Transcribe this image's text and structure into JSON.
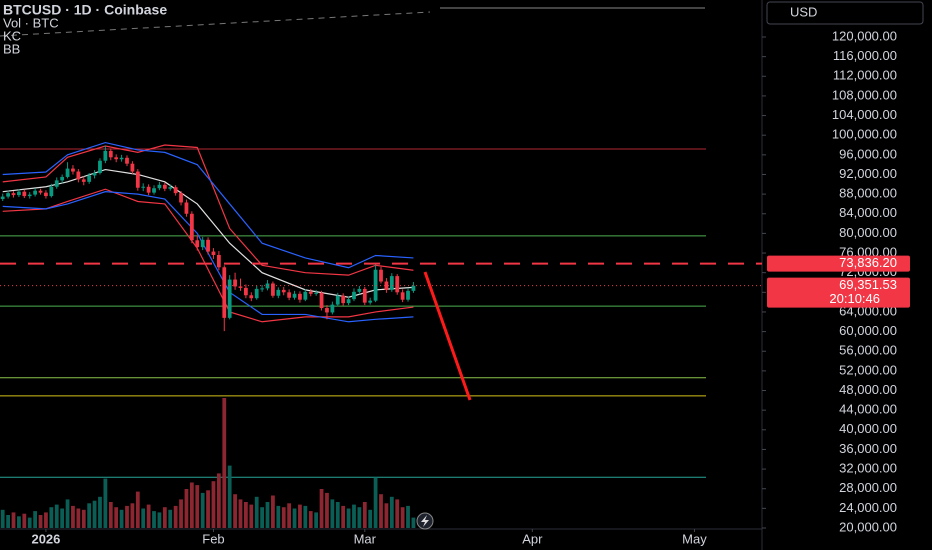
{
  "header": {
    "title": "BTCUSD · 1D · Coinbase",
    "volume": "Vol · BTC",
    "kc": "KC",
    "bb": "BB"
  },
  "currency": "USD",
  "chart_data": {
    "type": "candlestick",
    "xlim": [
      -0.5,
      140.5
    ],
    "ylim": [
      20000,
      120000
    ],
    "xticks": [
      {
        "value": 8,
        "label": "2026"
      },
      {
        "value": 39,
        "label": "Feb"
      },
      {
        "value": 67,
        "label": "Mar"
      },
      {
        "value": 98,
        "label": "Apr"
      },
      {
        "value": 128,
        "label": "May"
      }
    ],
    "yticks": [
      {
        "value": 120000,
        "label": "120,000.00"
      },
      {
        "value": 116000,
        "label": "116,000.00"
      },
      {
        "value": 112000,
        "label": "112,000.00"
      },
      {
        "value": 108000,
        "label": "108,000.00"
      },
      {
        "value": 104000,
        "label": "104,000.00"
      },
      {
        "value": 100000,
        "label": "100,000.00"
      },
      {
        "value": 96000,
        "label": "96,000.00"
      },
      {
        "value": 92000,
        "label": "92,000.00"
      },
      {
        "value": 88000,
        "label": "88,000.00"
      },
      {
        "value": 84000,
        "label": "84,000.00"
      },
      {
        "value": 80000,
        "label": "80,000.00"
      },
      {
        "value": 76000,
        "label": "76,000.00"
      },
      {
        "value": 72000,
        "label": "72,000.00"
      },
      {
        "value": 68000,
        "label": "68,000.00"
      },
      {
        "value": 64000,
        "label": "64,000.00"
      },
      {
        "value": 60000,
        "label": "60,000.00"
      },
      {
        "value": 56000,
        "label": "56,000.00"
      },
      {
        "value": 52000,
        "label": "52,000.00"
      },
      {
        "value": 48000,
        "label": "48,000.00"
      },
      {
        "value": 44000,
        "label": "44,000.00"
      },
      {
        "value": 40000,
        "label": "40,000.00"
      },
      {
        "value": 36000,
        "label": "36,000.00"
      },
      {
        "value": 32000,
        "label": "32,000.00"
      },
      {
        "value": 28000,
        "label": "28,000.00"
      },
      {
        "value": 24000,
        "label": "24,000.00"
      },
      {
        "value": 20000,
        "label": "20,000.00"
      }
    ],
    "colors": {
      "up": "#089981",
      "down": "#f23645",
      "up_volume": "#0b5e55",
      "down_volume": "#8c2630"
    },
    "ohlc": [
      [
        87000,
        88100,
        86600,
        87500
      ],
      [
        87500,
        88700,
        87100,
        88200
      ],
      [
        88200,
        88600,
        87300,
        87800
      ],
      [
        87800,
        89000,
        87400,
        88500
      ],
      [
        88500,
        88900,
        87200,
        87600
      ],
      [
        87600,
        88400,
        87100,
        87900
      ],
      [
        87900,
        89200,
        87500,
        88700
      ],
      [
        88700,
        89100,
        87900,
        88300
      ],
      [
        88300,
        88800,
        87100,
        87600
      ],
      [
        87600,
        90100,
        87300,
        89500
      ],
      [
        89500,
        91400,
        89100,
        90800
      ],
      [
        90800,
        92000,
        90200,
        91500
      ],
      [
        91500,
        94500,
        91200,
        93200
      ],
      [
        93200,
        93900,
        92000,
        92600
      ],
      [
        92600,
        93100,
        90400,
        91000
      ],
      [
        91000,
        91600,
        89800,
        90500
      ],
      [
        90500,
        92300,
        90100,
        91800
      ],
      [
        91800,
        92900,
        91200,
        92300
      ],
      [
        92300,
        95300,
        92000,
        94800
      ],
      [
        94800,
        97900,
        94300,
        96800
      ],
      [
        96800,
        97300,
        94900,
        95500
      ],
      [
        95500,
        96100,
        94500,
        95100
      ],
      [
        95100,
        96000,
        94600,
        95400
      ],
      [
        95400,
        95900,
        93700,
        94200
      ],
      [
        94200,
        94700,
        92100,
        92600
      ],
      [
        92600,
        93100,
        88700,
        89300
      ],
      [
        89300,
        90200,
        88600,
        89500
      ],
      [
        89500,
        90000,
        87800,
        88300
      ],
      [
        88300,
        89800,
        87900,
        89200
      ],
      [
        89200,
        90500,
        88800,
        89900
      ],
      [
        89900,
        90300,
        88600,
        89100
      ],
      [
        89100,
        90000,
        88700,
        89400
      ],
      [
        89400,
        89800,
        87700,
        88200
      ],
      [
        88200,
        88600,
        85700,
        86300
      ],
      [
        86300,
        86900,
        83400,
        84000
      ],
      [
        84000,
        84500,
        78000,
        78600
      ],
      [
        78600,
        79600,
        76500,
        77200
      ],
      [
        77200,
        79300,
        76600,
        78700
      ],
      [
        78700,
        79200,
        75700,
        76300
      ],
      [
        76300,
        77000,
        74800,
        75600
      ],
      [
        75600,
        76400,
        72500,
        73100
      ],
      [
        73100,
        73500,
        60100,
        62800
      ],
      [
        62800,
        71500,
        62500,
        70600
      ],
      [
        70600,
        72000,
        68500,
        69200
      ],
      [
        69200,
        70800,
        68300,
        68900
      ],
      [
        68900,
        69600,
        66800,
        67400
      ],
      [
        67400,
        68000,
        66200,
        66800
      ],
      [
        66800,
        69300,
        66500,
        68700
      ],
      [
        68700,
        69500,
        68100,
        68800
      ],
      [
        68800,
        70500,
        68400,
        69800
      ],
      [
        69800,
        70200,
        66900,
        67300
      ],
      [
        67300,
        69000,
        66800,
        68500
      ],
      [
        68500,
        69100,
        67400,
        68000
      ],
      [
        68000,
        68600,
        66400,
        66900
      ],
      [
        66900,
        68300,
        66500,
        67700
      ],
      [
        67700,
        68200,
        65900,
        66500
      ],
      [
        66500,
        68600,
        66200,
        68100
      ],
      [
        68100,
        68700,
        67200,
        67700
      ],
      [
        67700,
        68500,
        67300,
        67900
      ],
      [
        67900,
        68300,
        64300,
        64800
      ],
      [
        64800,
        65400,
        62500,
        63900
      ],
      [
        63900,
        66100,
        63500,
        65500
      ],
      [
        65500,
        67900,
        65100,
        67300
      ],
      [
        67300,
        67800,
        65300,
        65800
      ],
      [
        65800,
        67200,
        65400,
        66600
      ],
      [
        66600,
        68800,
        66200,
        68100
      ],
      [
        68100,
        69300,
        67600,
        68700
      ],
      [
        68700,
        69100,
        65400,
        65900
      ],
      [
        65900,
        66900,
        65500,
        66300
      ],
      [
        66300,
        74000,
        66000,
        72600
      ],
      [
        72600,
        73200,
        69800,
        70200
      ],
      [
        70200,
        70900,
        67900,
        68500
      ],
      [
        68500,
        71900,
        68100,
        71300
      ],
      [
        71300,
        71700,
        67500,
        68000
      ],
      [
        68000,
        68600,
        66000,
        66500
      ],
      [
        66500,
        68900,
        66100,
        68300
      ],
      [
        68300,
        70100,
        67900,
        69351.53
      ]
    ],
    "volume": [
      14,
      10,
      12,
      9,
      11,
      8,
      13,
      10,
      12,
      16,
      18,
      15,
      22,
      17,
      15,
      14,
      19,
      21,
      24,
      38,
      20,
      16,
      14,
      17,
      19,
      28,
      15,
      18,
      13,
      12,
      16,
      14,
      17,
      22,
      30,
      35,
      33,
      27,
      29,
      36,
      42,
      100,
      48,
      26,
      22,
      20,
      18,
      24,
      16,
      20,
      25,
      17,
      16,
      19,
      15,
      18,
      17,
      13,
      12,
      30,
      27,
      22,
      20,
      17,
      15,
      18,
      16,
      20,
      14,
      39,
      26,
      19,
      24,
      22,
      16,
      17,
      8
    ],
    "volume_lim": [
      0,
      100
    ],
    "volume_level": {
      "value": 39,
      "color": "#26a69a"
    },
    "band_x": [
      0,
      8,
      12,
      19,
      25,
      30,
      36,
      42,
      48,
      56,
      64,
      69,
      76
    ],
    "bands": [
      {
        "color": "#f23645",
        "values": [
          90500,
          91500,
          95500,
          97800,
          96500,
          98000,
          97500,
          81000,
          73500,
          72000,
          71500,
          73500,
          72500
        ]
      },
      {
        "color": "#f23645",
        "values": [
          84500,
          85000,
          86500,
          89000,
          86500,
          86000,
          77000,
          64000,
          62000,
          63000,
          63000,
          64000,
          65000
        ]
      },
      {
        "color": "#2962ff",
        "values": [
          92000,
          92500,
          96000,
          98500,
          97000,
          96500,
          94000,
          86000,
          78000,
          75000,
          73000,
          75500,
          75000
        ]
      },
      {
        "color": "#2962ff",
        "values": [
          85500,
          85000,
          86000,
          88500,
          88000,
          87000,
          80000,
          68000,
          63500,
          63500,
          62000,
          62500,
          63000
        ]
      },
      {
        "color": "#e0e0e0",
        "values": [
          88500,
          89500,
          90500,
          93000,
          92000,
          90500,
          86000,
          78000,
          72000,
          68500,
          67000,
          68500,
          69000
        ]
      }
    ],
    "hlines": [
      {
        "value": 97200,
        "color": "#b22833"
      },
      {
        "value": 79500,
        "color": "#4caf50"
      },
      {
        "value": 65200,
        "color": "#4caf50"
      },
      {
        "value": 50600,
        "color": "#8bc34a"
      },
      {
        "value": 46900,
        "color": "#d4c21a"
      }
    ],
    "dashed_line": {
      "value": 73836.2,
      "label": "73,836.20",
      "color": "#f23645"
    },
    "last_price": {
      "value": 69351.53,
      "label": "69,351.53",
      "countdown": "20:10:46",
      "color": "#f23645"
    }
  }
}
